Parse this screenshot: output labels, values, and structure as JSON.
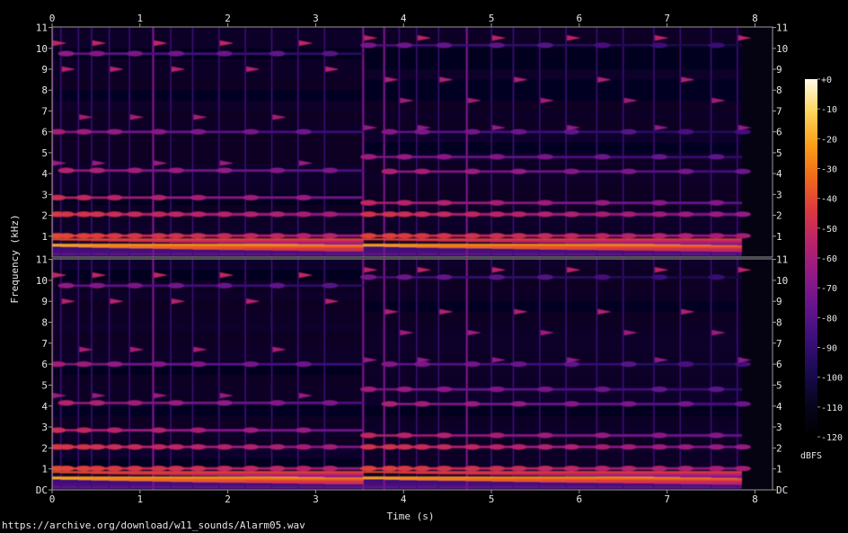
{
  "chart_data": {
    "type": "heatmap",
    "kind": "spectrogram",
    "source_url": "https://archive.org/download/w11_sounds/Alarm05.wav",
    "xlabel": "Time (s)",
    "ylabel": "Frequency (kHz)",
    "xlim": [
      0,
      8.2
    ],
    "ylim": [
      0,
      11.025
    ],
    "x_ticks": [
      0,
      1,
      2,
      3,
      4,
      5,
      6,
      7,
      8
    ],
    "y_tick_labels": [
      "DC",
      "1",
      "2",
      "3",
      "4",
      "5",
      "6",
      "7",
      "8",
      "9",
      "10",
      "11"
    ],
    "channels": 2,
    "colorbar": {
      "unit": "dBFS",
      "range": [
        -120,
        0
      ],
      "tick_labels": [
        "+0",
        "-10",
        "-20",
        "-30",
        "-40",
        "-50",
        "-60",
        "-70",
        "-80",
        "-90",
        "-100",
        "-110",
        "-120"
      ]
    },
    "colormap": [
      "#000000",
      "#06051e",
      "#1b0a52",
      "#3b0f7a",
      "#65148c",
      "#901a86",
      "#b9236a",
      "#dc3a3e",
      "#f06a1a",
      "#fba018",
      "#fdd55c",
      "#fffbe8"
    ],
    "sounds": [
      {
        "t_start": 0.0,
        "t_end": 3.54,
        "fundamental_khz": 0.57,
        "harmonic_khz": [
          1.02,
          2.05,
          2.85,
          4.15,
          6.0,
          9.75
        ],
        "overtone_khz": [
          10.25,
          9.0,
          6.7,
          4.5
        ],
        "level_db": -20
      },
      {
        "t_start": 3.54,
        "t_end": 7.85,
        "fundamental_khz": 0.57,
        "harmonic_khz": [
          1.02,
          2.05,
          2.6,
          4.1,
          4.8,
          6.0,
          10.15
        ],
        "overtone_khz": [
          10.5,
          8.5,
          7.5,
          6.2
        ],
        "level_db": -22
      }
    ],
    "note_onsets_s": [
      0.0,
      0.1,
      0.3,
      0.45,
      0.65,
      0.88,
      1.15,
      1.35,
      1.6,
      1.9,
      2.2,
      2.5,
      2.8,
      3.1,
      3.54,
      3.78,
      3.95,
      4.15,
      4.4,
      4.72,
      5.0,
      5.25,
      5.55,
      5.85,
      6.2,
      6.5,
      6.85,
      7.15,
      7.5,
      7.8
    ]
  }
}
